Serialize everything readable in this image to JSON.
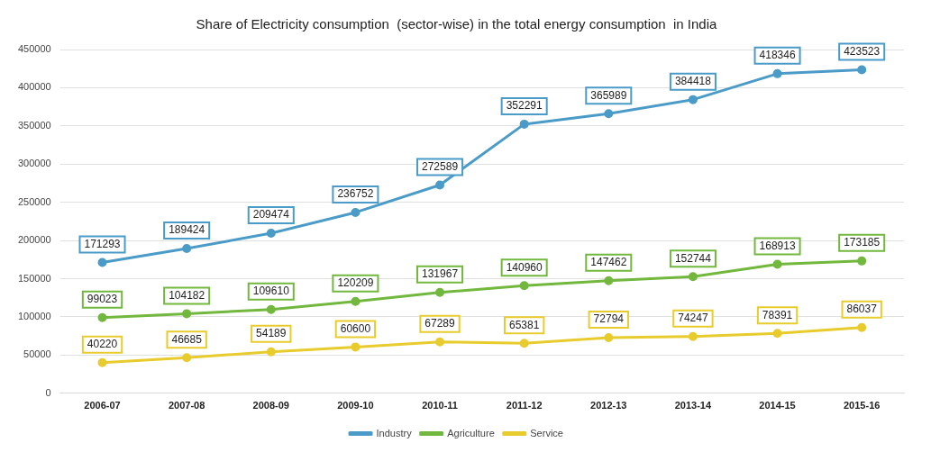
{
  "chart_data": {
    "type": "line",
    "title": "Share of Electricity consumption  (sector-wise) in the total energy consumption  in India",
    "categories": [
      "2006-07",
      "2007-08",
      "2008-09",
      "2009-10",
      "2010-11",
      "2011-12",
      "2012-13",
      "2013-14",
      "2014-15",
      "2015-16"
    ],
    "series": [
      {
        "name": "Industry",
        "color": "#4a9bc7",
        "values": [
          171293,
          189424,
          209474,
          236752,
          272589,
          352291,
          365989,
          384418,
          418346,
          423523
        ]
      },
      {
        "name": "Agriculture",
        "color": "#72b83e",
        "values": [
          99023,
          104182,
          109610,
          120209,
          131967,
          140960,
          147462,
          152744,
          168913,
          173185
        ]
      },
      {
        "name": "Service",
        "color": "#e8cc2e",
        "values": [
          40220,
          46685,
          54189,
          60600,
          67289,
          65381,
          72794,
          74247,
          78391,
          86037
        ]
      }
    ],
    "ylim": [
      0,
      450000
    ],
    "yticks": [
      0,
      50000,
      100000,
      150000,
      200000,
      250000,
      300000,
      350000,
      400000,
      450000
    ],
    "grid": "y",
    "legend": "bottom",
    "marker": "circle",
    "line_style": "solid",
    "data_labels": true
  }
}
